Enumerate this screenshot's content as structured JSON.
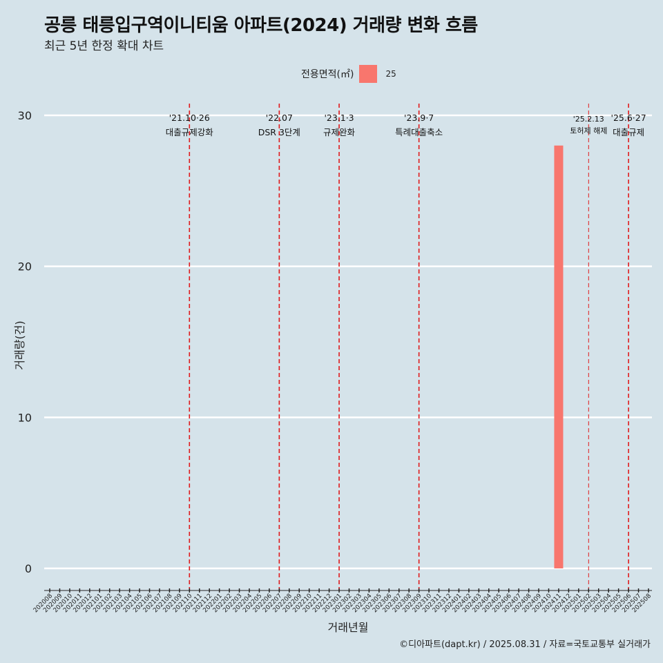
{
  "chart_data": {
    "type": "bar",
    "title": "공릉 태릉입구역이니티움 아파트(2024) 거래량 변화 흐름",
    "subtitle": "최근 5년 한정 확대 차트",
    "xlabel": "거래년월",
    "ylabel": "거래량(건)",
    "legend": {
      "title": "전용면적(㎡)",
      "entries": [
        {
          "label": "25",
          "color": "#f8766d"
        }
      ],
      "position": "top"
    },
    "ylim": [
      0,
      30
    ],
    "yticks": [
      0,
      10,
      20,
      30
    ],
    "categories": [
      "202008",
      "202009",
      "202010",
      "202011",
      "202012",
      "202101",
      "202102",
      "202103",
      "202104",
      "202105",
      "202106",
      "202107",
      "202108",
      "202109",
      "202110",
      "202111",
      "202112",
      "202201",
      "202202",
      "202203",
      "202204",
      "202205",
      "202206",
      "202207",
      "202208",
      "202209",
      "202210",
      "202211",
      "202212",
      "202301",
      "202302",
      "202303",
      "202304",
      "202305",
      "202306",
      "202307",
      "202308",
      "202309",
      "202310",
      "202311",
      "202312",
      "202401",
      "202402",
      "202403",
      "202404",
      "202405",
      "202406",
      "202407",
      "202408",
      "202409",
      "202410",
      "202411",
      "202412",
      "202501",
      "202502",
      "202503",
      "202504",
      "202505",
      "202506",
      "202507",
      "202508"
    ],
    "series": [
      {
        "name": "25",
        "color": "#f8766d",
        "values": [
          {
            "x": "202411",
            "y": 28
          }
        ]
      }
    ],
    "annotations": [
      {
        "x": "202110",
        "date": "'21.10·26",
        "label": "대출규제강화"
      },
      {
        "x": "202207",
        "date": "'22.07",
        "label": "DSR 3단계"
      },
      {
        "x": "202301",
        "date": "'23.1·3",
        "label": "규제완화"
      },
      {
        "x": "202309",
        "date": "'23.9·7",
        "label": "특례대출축소"
      },
      {
        "x": "202502",
        "date": "'25.2.13",
        "label": "토허제 해제",
        "thin": true
      },
      {
        "x": "202506",
        "date": "'25.6·27",
        "label": "대출규제"
      }
    ]
  },
  "caption": "©디아파트(dapt.kr) / 2025.08.31 / 자료=국토교통부 실거래가"
}
